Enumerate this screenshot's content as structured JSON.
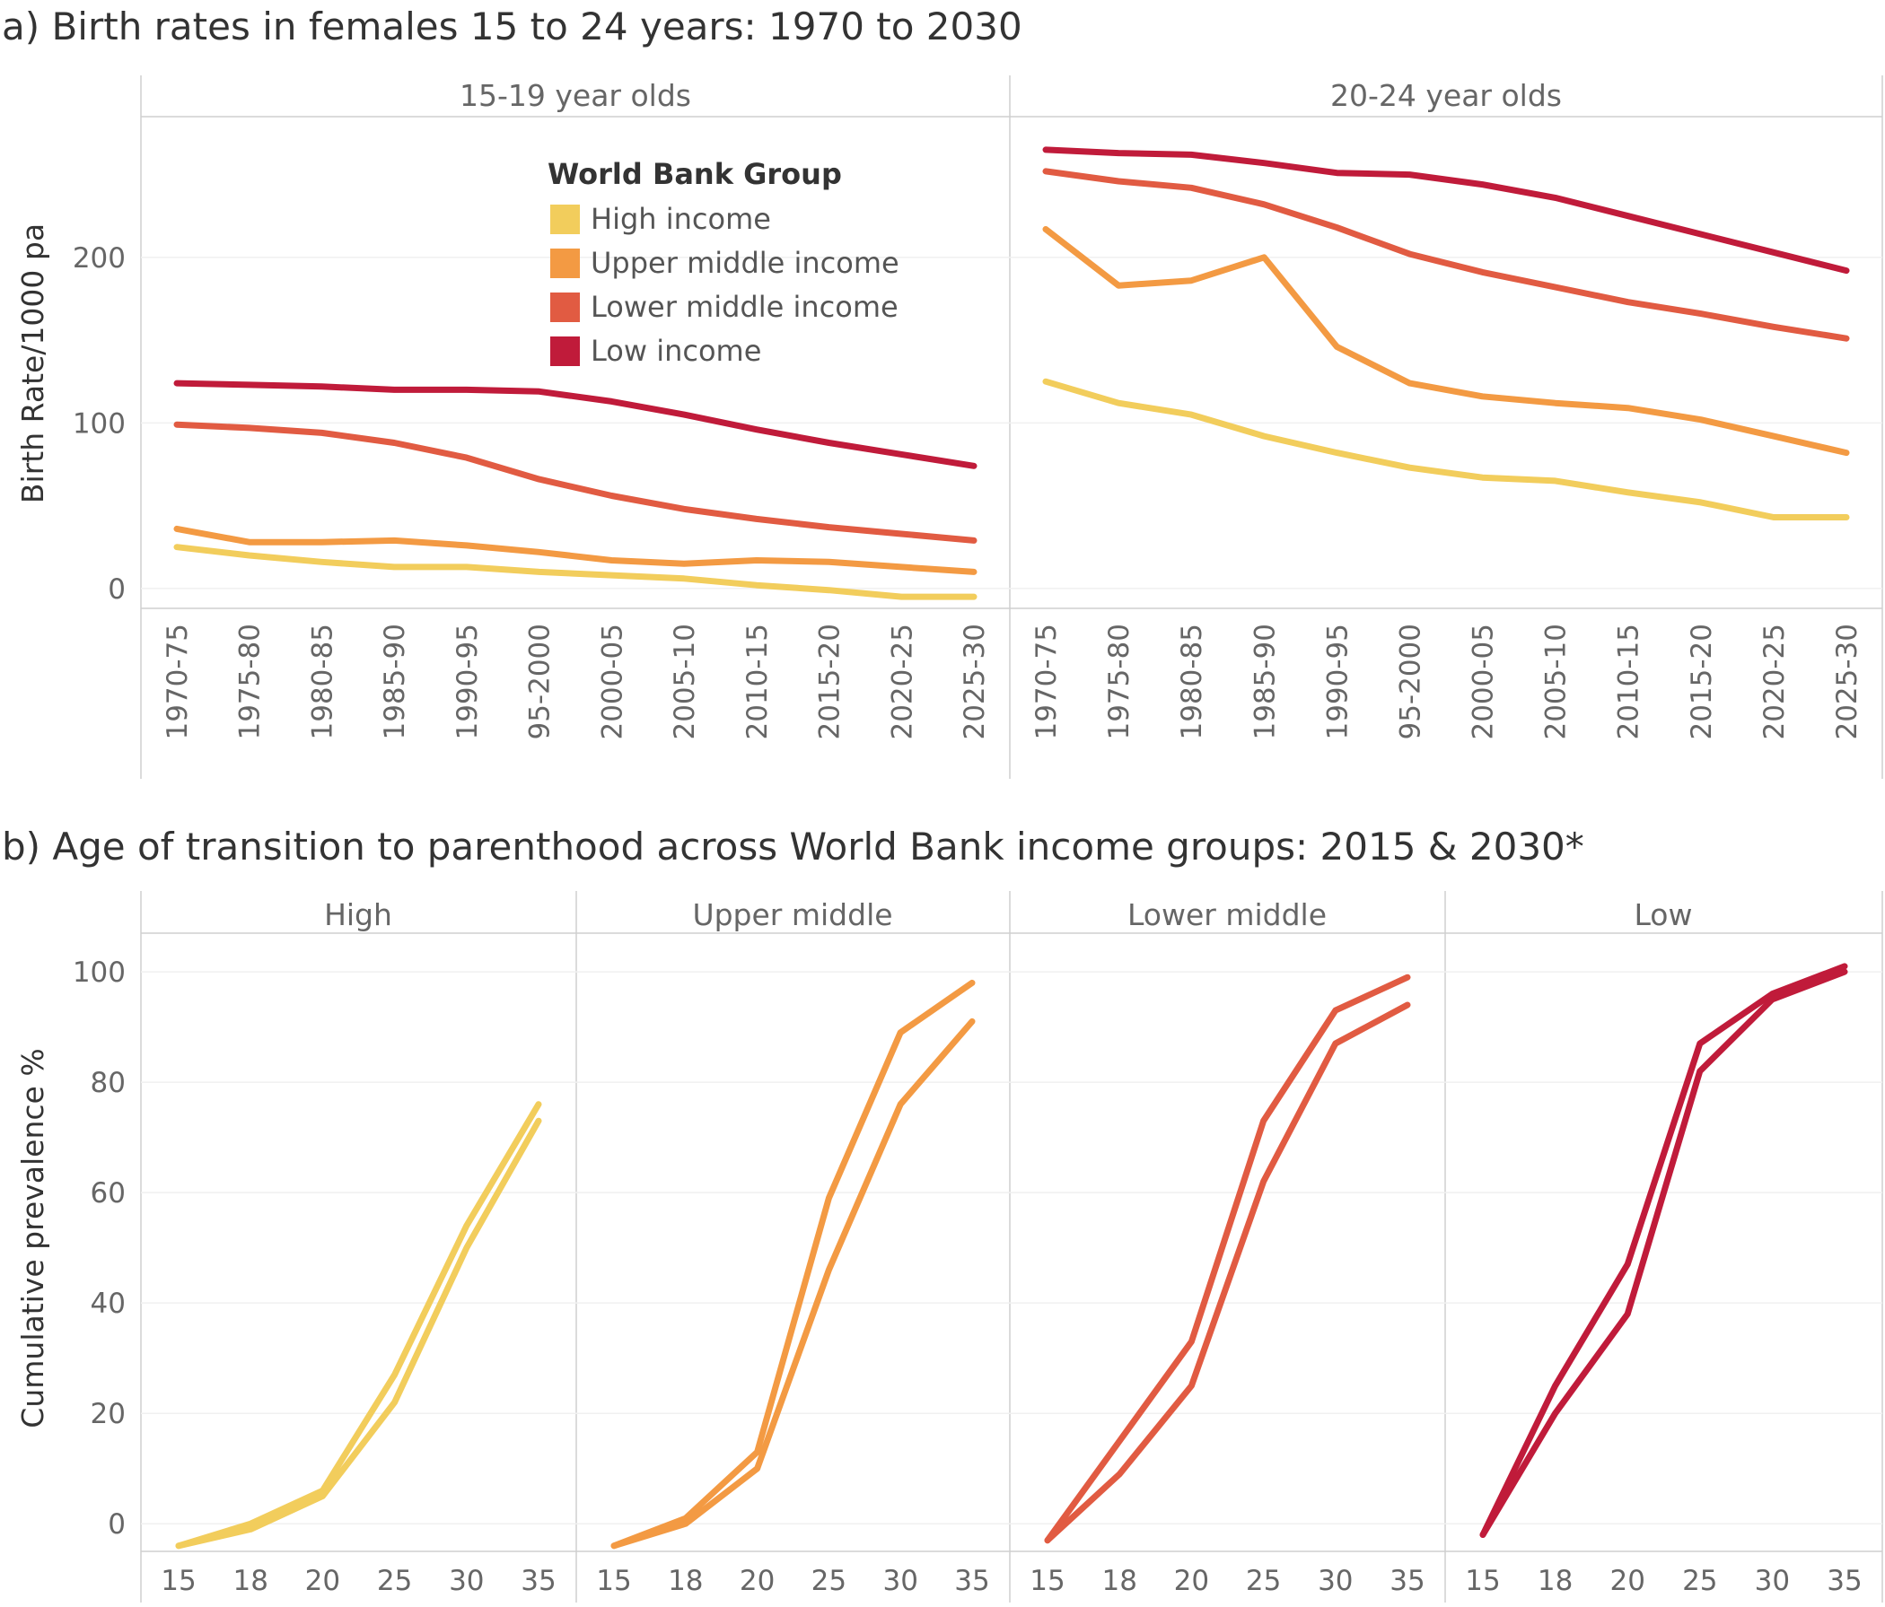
{
  "colors": {
    "high": "#f2cd5c",
    "upper": "#f39a43",
    "lower": "#e15b42",
    "low": "#c01b3a"
  },
  "chart_data": [
    {
      "type": "line",
      "title": "a) Birth rates in females 15 to 24 years: 1970 to 2030",
      "ylabel": "Birth Rate/1000 pa",
      "xlabel": "",
      "ylim": [
        -12,
        285
      ],
      "yticks": [
        0,
        100,
        200
      ],
      "categories": [
        "1970-75",
        "1975-80",
        "1980-85",
        "1985-90",
        "1990-95",
        "95-2000",
        "2000-05",
        "2005-10",
        "2010-15",
        "2015-20",
        "2020-25",
        "2025-30"
      ],
      "legend": {
        "title": "World Bank Group",
        "entries": [
          "High income",
          "Upper middle income",
          "Lower middle income",
          "Low income"
        ],
        "position": "top-center of left panel"
      },
      "facets": [
        {
          "label": "15-19 year olds",
          "series": [
            {
              "name": "High income",
              "color_key": "high",
              "values": [
                25,
                20,
                16,
                13,
                13,
                10,
                8,
                6,
                2,
                -1,
                -5,
                -5
              ]
            },
            {
              "name": "Upper middle income",
              "color_key": "upper",
              "values": [
                36,
                28,
                28,
                29,
                26,
                22,
                17,
                15,
                17,
                16,
                13,
                10
              ]
            },
            {
              "name": "Lower middle income",
              "color_key": "lower",
              "values": [
                99,
                97,
                94,
                88,
                79,
                66,
                56,
                48,
                42,
                37,
                33,
                29
              ]
            },
            {
              "name": "Low income",
              "color_key": "low",
              "values": [
                124,
                123,
                122,
                120,
                120,
                119,
                113,
                105,
                96,
                88,
                81,
                74
              ]
            }
          ]
        },
        {
          "label": "20-24 year olds",
          "series": [
            {
              "name": "High income",
              "color_key": "high",
              "values": [
                125,
                112,
                105,
                92,
                82,
                73,
                67,
                65,
                58,
                52,
                43,
                43
              ]
            },
            {
              "name": "Upper middle income",
              "color_key": "upper",
              "values": [
                217,
                183,
                186,
                200,
                146,
                124,
                116,
                112,
                109,
                102,
                92,
                82
              ]
            },
            {
              "name": "Lower middle income",
              "color_key": "lower",
              "values": [
                252,
                246,
                242,
                232,
                218,
                202,
                191,
                182,
                173,
                166,
                158,
                151
              ]
            },
            {
              "name": "Low income",
              "color_key": "low",
              "values": [
                265,
                263,
                262,
                257,
                251,
                250,
                244,
                236,
                225,
                214,
                203,
                192
              ]
            }
          ]
        }
      ]
    },
    {
      "type": "line",
      "title": "b) Age of transition to  parenthood across World Bank income groups: 2015 & 2030*",
      "ylabel": "Cumulative prevalence %",
      "xlabel": "",
      "ylim": [
        -5,
        107
      ],
      "yticks": [
        0,
        20,
        40,
        60,
        80,
        100
      ],
      "x": [
        15,
        18,
        20,
        25,
        30,
        35
      ],
      "facets": [
        {
          "label": "High",
          "color_key": "high",
          "series": [
            {
              "name": "High - curve 1",
              "values": [
                -4,
                0,
                6,
                27,
                54,
                76
              ]
            },
            {
              "name": "High - curve 2",
              "values": [
                -4,
                -1,
                5,
                22,
                50,
                73
              ]
            }
          ]
        },
        {
          "label": "Upper middle",
          "color_key": "upper",
          "series": [
            {
              "name": "Upper middle - curve 1",
              "values": [
                -4,
                1,
                13,
                59,
                89,
                98
              ]
            },
            {
              "name": "Upper middle - curve 2",
              "values": [
                -4,
                0,
                10,
                46,
                76,
                91
              ]
            }
          ]
        },
        {
          "label": "Lower middle",
          "color_key": "lower",
          "series": [
            {
              "name": "Lower middle - curve 1",
              "values": [
                -3,
                15,
                33,
                73,
                93,
                99
              ]
            },
            {
              "name": "Lower middle - curve 2",
              "values": [
                -3,
                9,
                25,
                62,
                87,
                94
              ]
            }
          ]
        },
        {
          "label": "Low",
          "color_key": "low",
          "series": [
            {
              "name": "Low - curve 1",
              "values": [
                -2,
                25,
                47,
                87,
                96,
                101
              ]
            },
            {
              "name": "Low - curve 2",
              "values": [
                -2,
                20,
                38,
                82,
                95,
                100
              ]
            }
          ]
        }
      ]
    }
  ]
}
